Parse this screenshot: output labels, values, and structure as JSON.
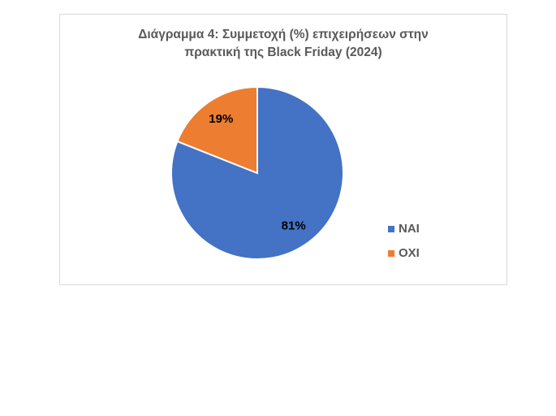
{
  "chart_data": {
    "type": "pie",
    "title": "Διάγραμμα 4: Συμμετοχή (%) επιχειρήσεων στην πρακτική της Black Friday (2024)",
    "categories": [
      "ΝΑΙ",
      "ΟΧΙ"
    ],
    "values": [
      81,
      19
    ],
    "value_labels": [
      "81%",
      "19%"
    ],
    "colors": [
      "#4472c4",
      "#ed7d31"
    ],
    "legend": "right"
  }
}
